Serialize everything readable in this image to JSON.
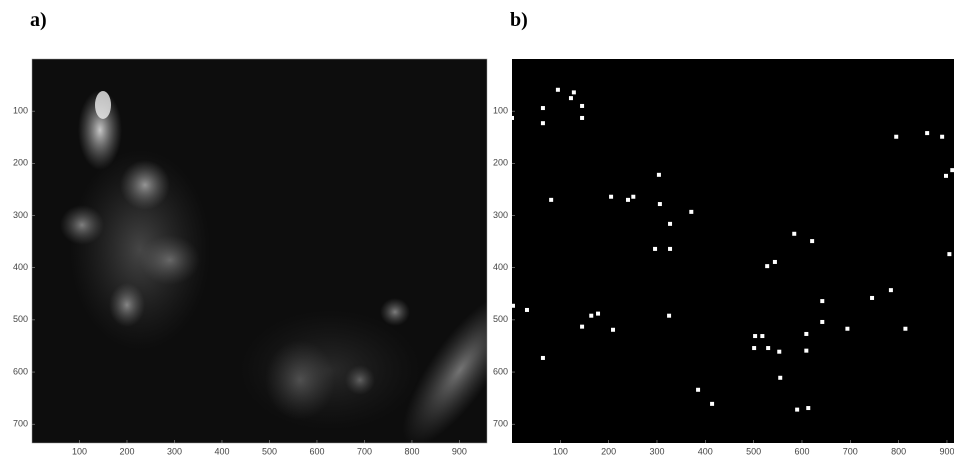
{
  "chart_data": [
    {
      "type": "image",
      "title": "a)",
      "xlim": [
        0,
        958
      ],
      "ylim": [
        0,
        736
      ],
      "y_reversed": true,
      "xticks": [
        100,
        200,
        300,
        400,
        500,
        600,
        700,
        800,
        900
      ],
      "yticks": [
        100,
        200,
        300,
        400,
        500,
        600,
        700
      ]
    },
    {
      "type": "scatter",
      "title": "b)",
      "color": "#ffffff",
      "xlim": [
        0,
        958
      ],
      "ylim": [
        0,
        736
      ],
      "y_reversed": true,
      "xticks": [
        100,
        200,
        300,
        400,
        500,
        600,
        700,
        800,
        900
      ],
      "yticks": [
        100,
        200,
        300,
        400,
        500,
        600,
        700
      ],
      "x": [
        0,
        64,
        64,
        95,
        122,
        128,
        145,
        145,
        81,
        205,
        240,
        251,
        304,
        306,
        327,
        371,
        296,
        327,
        2,
        31,
        145,
        164,
        178,
        209,
        325,
        64,
        385,
        414,
        528,
        544,
        584,
        621,
        642,
        642,
        694,
        745,
        784,
        814,
        795,
        859,
        890,
        898,
        905,
        911,
        503,
        518,
        501,
        530,
        553,
        555,
        609,
        609,
        590,
        613
      ],
      "y": [
        113,
        94,
        123,
        59,
        75,
        64,
        90,
        113,
        270,
        264,
        270,
        264,
        222,
        278,
        316,
        293,
        364,
        364,
        473,
        481,
        513,
        492,
        488,
        519,
        492,
        573,
        634,
        661,
        397,
        389,
        335,
        349,
        464,
        504,
        517,
        458,
        443,
        517,
        149,
        142,
        149,
        224,
        374,
        213,
        531,
        531,
        554,
        554,
        561,
        611,
        527,
        559,
        672,
        669
      ]
    }
  ]
}
